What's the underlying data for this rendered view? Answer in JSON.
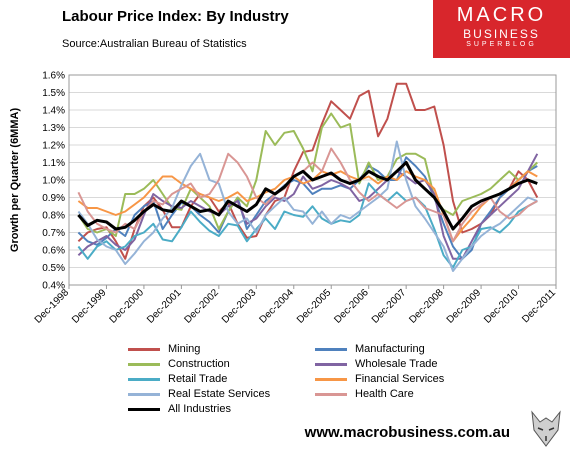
{
  "header": {
    "title": "Labour Price Index: By Industry",
    "subtitle": "Source:Australian Bureau of Statistics"
  },
  "logo": {
    "line1": "MACRO",
    "line2": "BUSINESS",
    "line3": "SUPERBLOG"
  },
  "footer": {
    "url": "www.macrobusiness.com.au"
  },
  "chart_data": {
    "type": "line",
    "title": "Labour Price Index: By Industry",
    "ylabel": "Growth per Quarter (6MMA)",
    "xlabel": "",
    "ylim": [
      0.4,
      1.6
    ],
    "yticks": [
      "0.4%",
      "0.5%",
      "0.6%",
      "0.7%",
      "0.8%",
      "0.9%",
      "1.0%",
      "1.1%",
      "1.2%",
      "1.3%",
      "1.4%",
      "1.5%",
      "1.6%"
    ],
    "xlim": [
      1998.75,
      2011.75
    ],
    "xticks": [
      {
        "x": 1998.75,
        "label": "Dec-1998"
      },
      {
        "x": 1999.75,
        "label": "Dec-1999"
      },
      {
        "x": 2000.75,
        "label": "Dec-2000"
      },
      {
        "x": 2001.75,
        "label": "Dec-2001"
      },
      {
        "x": 2002.75,
        "label": "Dec-2002"
      },
      {
        "x": 2003.75,
        "label": "Dec-2003"
      },
      {
        "x": 2004.75,
        "label": "Dec-2004"
      },
      {
        "x": 2005.75,
        "label": "Dec-2005"
      },
      {
        "x": 2006.75,
        "label": "Dec-2006"
      },
      {
        "x": 2007.75,
        "label": "Dec-2007"
      },
      {
        "x": 2008.75,
        "label": "Dec-2008"
      },
      {
        "x": 2009.75,
        "label": "Dec-2009"
      },
      {
        "x": 2010.75,
        "label": "Dec-2010"
      },
      {
        "x": 2011.75,
        "label": "Dec-2011"
      }
    ],
    "x_start": 1999.0,
    "x_step": 0.25,
    "grid": true,
    "legend": "bottom",
    "series": [
      {
        "name": "Mining",
        "color": "#c0504d",
        "width": 2,
        "values": [
          0.65,
          0.7,
          0.72,
          0.73,
          0.65,
          0.55,
          0.72,
          0.85,
          0.9,
          0.83,
          0.73,
          0.73,
          0.85,
          0.92,
          0.9,
          0.82,
          0.87,
          0.75,
          0.67,
          0.68,
          0.8,
          0.88,
          0.9,
          1.05,
          1.16,
          1.17,
          1.32,
          1.45,
          1.4,
          1.35,
          1.48,
          1.51,
          1.25,
          1.35,
          1.55,
          1.55,
          1.4,
          1.4,
          1.42,
          1.2,
          0.88,
          0.7,
          0.72,
          0.75,
          0.8,
          0.9,
          0.95,
          1.05,
          1.0,
          0.9
        ]
      },
      {
        "name": "Manufacturing",
        "color": "#4f81bd",
        "width": 2,
        "values": [
          0.7,
          0.65,
          0.63,
          0.67,
          0.72,
          0.68,
          0.8,
          0.85,
          0.88,
          0.72,
          0.8,
          0.87,
          0.85,
          0.8,
          0.76,
          0.7,
          0.82,
          0.9,
          0.72,
          0.8,
          0.88,
          0.92,
          0.97,
          1.0,
          0.98,
          0.92,
          0.95,
          0.95,
          0.97,
          0.95,
          1.0,
          1.08,
          1.05,
          1.0,
          1.0,
          1.13,
          1.08,
          1.02,
          0.9,
          0.75,
          0.62,
          0.55,
          0.6,
          0.75,
          0.82,
          0.9,
          0.95,
          1.0,
          1.05,
          1.08
        ]
      },
      {
        "name": "Construction",
        "color": "#9bbb59",
        "width": 2,
        "values": [
          0.8,
          0.72,
          0.7,
          0.72,
          0.68,
          0.92,
          0.92,
          0.95,
          1.0,
          0.92,
          0.84,
          0.83,
          0.95,
          0.9,
          0.85,
          0.72,
          0.82,
          0.9,
          0.85,
          1.0,
          1.28,
          1.2,
          1.27,
          1.28,
          1.18,
          1.05,
          1.3,
          1.38,
          1.3,
          1.32,
          0.98,
          1.1,
          1.0,
          1.02,
          1.12,
          1.15,
          1.15,
          1.12,
          0.9,
          0.83,
          0.8,
          0.88,
          0.9,
          0.92,
          0.95,
          1.0,
          1.05,
          1.0,
          1.05,
          1.1
        ]
      },
      {
        "name": "Wholesale Trade",
        "color": "#8064a2",
        "width": 2,
        "values": [
          0.57,
          0.62,
          0.65,
          0.68,
          0.63,
          0.6,
          0.66,
          0.8,
          0.92,
          0.88,
          0.85,
          0.84,
          0.88,
          0.85,
          0.82,
          0.8,
          0.85,
          0.88,
          0.75,
          0.78,
          0.85,
          0.9,
          0.88,
          0.92,
          1.02,
          0.95,
          0.97,
          1.0,
          0.98,
          0.95,
          0.88,
          0.9,
          0.95,
          1.0,
          1.05,
          1.02,
          0.98,
          1.0,
          0.92,
          0.68,
          0.55,
          0.55,
          0.65,
          0.75,
          0.8,
          0.85,
          0.9,
          0.95,
          1.05,
          1.15
        ]
      },
      {
        "name": "Retail Trade",
        "color": "#4bacc6",
        "width": 2,
        "values": [
          0.62,
          0.55,
          0.62,
          0.65,
          0.6,
          0.62,
          0.68,
          0.7,
          0.75,
          0.66,
          0.65,
          0.73,
          0.82,
          0.76,
          0.71,
          0.68,
          0.75,
          0.74,
          0.65,
          0.72,
          0.78,
          0.72,
          0.82,
          0.8,
          0.79,
          0.85,
          0.78,
          0.75,
          0.77,
          0.76,
          0.8,
          0.98,
          0.92,
          0.88,
          0.93,
          0.88,
          0.9,
          0.85,
          0.72,
          0.57,
          0.5,
          0.6,
          0.62,
          0.72,
          0.73,
          0.7,
          0.75,
          0.82,
          0.85,
          0.88
        ]
      },
      {
        "name": "Financial Services",
        "color": "#f79646",
        "width": 2,
        "values": [
          0.88,
          0.84,
          0.84,
          0.82,
          0.8,
          0.82,
          0.86,
          0.9,
          0.96,
          1.02,
          1.02,
          0.98,
          0.95,
          0.92,
          0.9,
          0.88,
          0.9,
          0.93,
          0.88,
          0.9,
          0.93,
          0.95,
          1.0,
          1.02,
          0.98,
          1.0,
          1.05,
          1.03,
          1.05,
          1.02,
          1.0,
          1.02,
          0.98,
          1.02,
          1.0,
          1.05,
          1.02,
          1.0,
          0.95,
          0.8,
          0.65,
          0.72,
          0.78,
          0.85,
          0.9,
          0.92,
          0.95,
          1.0,
          1.05,
          1.02
        ]
      },
      {
        "name": "Real Estate Services",
        "color": "#95b3d7",
        "width": 2,
        "values": [
          0.82,
          0.75,
          0.66,
          0.62,
          0.6,
          0.52,
          0.58,
          0.65,
          0.7,
          0.78,
          0.84,
          0.97,
          1.08,
          1.15,
          1.0,
          0.98,
          0.82,
          0.75,
          0.78,
          0.7,
          0.8,
          0.85,
          0.9,
          0.83,
          0.82,
          0.75,
          0.82,
          0.75,
          0.8,
          0.78,
          0.82,
          0.86,
          0.9,
          0.95,
          1.22,
          1.0,
          0.85,
          0.78,
          0.7,
          0.62,
          0.48,
          0.55,
          0.62,
          0.68,
          0.72,
          0.75,
          0.8,
          0.85,
          0.9,
          0.88
        ]
      },
      {
        "name": "Health Care",
        "color": "#d99694",
        "width": 2,
        "values": [
          0.93,
          0.82,
          0.75,
          0.72,
          0.7,
          0.75,
          0.72,
          0.82,
          0.88,
          0.86,
          0.92,
          0.95,
          0.98,
          0.9,
          0.92,
          1.0,
          1.15,
          1.1,
          1.02,
          0.9,
          0.86,
          0.92,
          0.95,
          1.02,
          1.05,
          1.1,
          1.05,
          1.18,
          1.1,
          1.0,
          0.93,
          0.88,
          0.92,
          0.88,
          0.84,
          0.88,
          0.9,
          0.84,
          0.82,
          0.8,
          0.65,
          0.75,
          0.82,
          0.86,
          0.9,
          0.82,
          0.78,
          0.8,
          0.85,
          0.88
        ]
      },
      {
        "name": "All Industries",
        "color": "#000000",
        "width": 3,
        "values": [
          0.8,
          0.74,
          0.77,
          0.76,
          0.72,
          0.73,
          0.77,
          0.82,
          0.86,
          0.83,
          0.82,
          0.88,
          0.85,
          0.82,
          0.83,
          0.8,
          0.88,
          0.85,
          0.82,
          0.86,
          0.95,
          0.92,
          0.96,
          1.02,
          1.05,
          1.0,
          1.02,
          1.04,
          1.0,
          0.98,
          1.0,
          1.05,
          1.02,
          1.0,
          1.05,
          1.1,
          1.0,
          0.95,
          0.9,
          0.82,
          0.72,
          0.78,
          0.85,
          0.88,
          0.9,
          0.92,
          0.95,
          0.98,
          1.0,
          0.98
        ]
      }
    ]
  }
}
